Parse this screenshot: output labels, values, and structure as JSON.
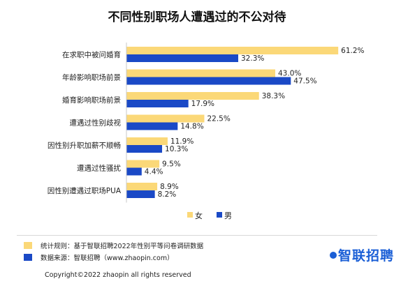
{
  "chart_data": {
    "type": "bar",
    "orientation": "horizontal",
    "title": "不同性别职场人遭遇过的不公对待",
    "categories": [
      "在求职中被问婚育",
      "年龄影响职场前景",
      "婚育影响职场前景",
      "遭遇过性别歧视",
      "因性别升职加薪不顺畅",
      "遭遇过性骚扰",
      "因性别遭遇过职场PUA"
    ],
    "series": [
      {
        "name": "女",
        "color": "#fbd878",
        "values": [
          61.2,
          43.0,
          38.3,
          22.5,
          11.9,
          9.5,
          8.9
        ],
        "labels": [
          "61.2%",
          "43.0%",
          "38.3%",
          "22.5%",
          "11.9%",
          "9.5%",
          "8.9%"
        ]
      },
      {
        "name": "男",
        "color": "#1a49c6",
        "values": [
          32.3,
          47.5,
          17.9,
          14.8,
          10.3,
          4.4,
          8.2
        ],
        "labels": [
          "32.3%",
          "47.5%",
          "17.9%",
          "14.8%",
          "10.3%",
          "4.4%",
          "8.2%"
        ]
      }
    ],
    "xlim": [
      0,
      65
    ],
    "grid": false,
    "legend_position": "bottom"
  },
  "footer": {
    "notes": [
      {
        "text": "统计规则：基于智联招聘2022年性别平等问卷调研数据",
        "color": "#fbd878"
      },
      {
        "text": "数据来源：智联招聘（www.zhaopin.com）",
        "color": "#1a49c6"
      }
    ],
    "brand": "智联招聘",
    "copyright": "Copyright©2022 zhaopin all rights reserved"
  }
}
